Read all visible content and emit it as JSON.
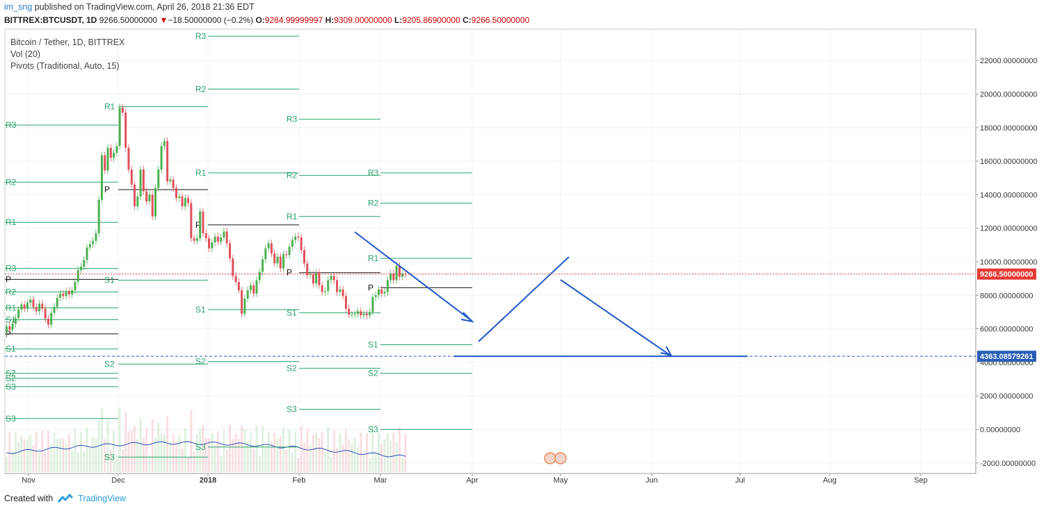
{
  "header": {
    "author": "im_sng",
    "published": "published on TradingView.com, April 26, 2018 21:36 EDT",
    "symbol": "BITTREX:BTCUSDT, 1D",
    "last": "9266.50000000",
    "change": "−18.50000000 (−0.2%)",
    "o_label": "O:",
    "o": "9284.99999997",
    "h_label": "H:",
    "h": "9309.00000000",
    "l_label": "L:",
    "l": "9205.86900000",
    "c_label": "C:",
    "c": "9266.50000000"
  },
  "legend": {
    "line1": "Bitcoin / Tether, 1D, BITTREX",
    "line2": "Vol (20)",
    "line3": "Pivots (Traditional, Auto, 15)"
  },
  "footer": {
    "created_with": "Created with",
    "brand": "TradingView"
  },
  "chart_data": {
    "type": "candlestick",
    "title": "Bitcoin / Tether, 1D, BITTREX",
    "y_axis": {
      "min": -2000,
      "max": 22000,
      "ticks": [
        "22000.00000000",
        "20000.00000000",
        "18000.00000000",
        "16000.00000000",
        "14000.00000000",
        "12000.00000000",
        "10000.00000000",
        "8000.00000000",
        "6000.00000000",
        "4000.00000000",
        "2000.00000000",
        "0.00000000",
        "-2000.00000000"
      ]
    },
    "x_axis": {
      "ticks": [
        "Nov",
        "Dec",
        "2018",
        "Feb",
        "Mar",
        "Apr",
        "May",
        "Jun",
        "Jul",
        "Aug",
        "Sep"
      ]
    },
    "price_tags": [
      {
        "value": 9266.5,
        "label": "9266.50000000",
        "color": "#e53935"
      },
      {
        "value": 4363.08579261,
        "label": "4363.08579261",
        "color": "#2a5fb8"
      }
    ],
    "pivot_sets": [
      {
        "period": "Oct-Nov 2017",
        "P": 5700,
        "R1": 7250,
        "R2": 8200,
        "R3": 9600,
        "S1": 4800,
        "S2": 3350,
        "S3": 2550
      },
      {
        "period": "Nov-Dec 2017",
        "P": 8950,
        "R1": 12350,
        "R2": 14750,
        "R3": 18150,
        "S1": 6550,
        "S2": 3050,
        "S3": 650
      },
      {
        "period": "Dec 2017-Jan 2018",
        "P": 14300,
        "R1": 19250,
        "R2": null,
        "R3": null,
        "S1": 8900,
        "S2": 3900,
        "S3": -1650
      },
      {
        "period": "Jan-Feb 2018",
        "P": 12200,
        "R1": 15300,
        "R2": 20300,
        "R3": 23450,
        "S1": 7150,
        "S2": 4050,
        "S3": -1050
      },
      {
        "period": "Feb-Mar 2018",
        "P": 9350,
        "R1": 12700,
        "R2": 15150,
        "R3": 18500,
        "S1": 6950,
        "S2": 3650,
        "S3": 1200
      },
      {
        "period": "Mar-Apr 2018",
        "P": 8450,
        "R1": 10200,
        "R2": 13500,
        "R3": 15300,
        "S1": 5050,
        "S2": 3350,
        "S3": 0
      }
    ],
    "candles": [
      [
        5800,
        6150
      ],
      [
        6150,
        5950
      ],
      [
        5950,
        6300
      ],
      [
        6300,
        6650
      ],
      [
        6650,
        7150
      ],
      [
        7150,
        7450
      ],
      [
        7450,
        7200
      ],
      [
        7200,
        7550
      ],
      [
        7550,
        7750
      ],
      [
        7750,
        7300
      ],
      [
        7300,
        7050
      ],
      [
        7050,
        7500
      ],
      [
        7500,
        7200
      ],
      [
        7200,
        6600
      ],
      [
        6600,
        6250
      ],
      [
        6250,
        6950
      ],
      [
        6950,
        7300
      ],
      [
        7300,
        7850
      ],
      [
        7850,
        8100
      ],
      [
        8100,
        7950
      ],
      [
        7950,
        8250
      ],
      [
        8250,
        8050
      ],
      [
        8050,
        8300
      ],
      [
        8300,
        8800
      ],
      [
        8800,
        9500
      ],
      [
        9500,
        9700
      ],
      [
        9700,
        10100
      ],
      [
        10100,
        10850
      ],
      [
        10850,
        11050
      ],
      [
        11050,
        11250
      ],
      [
        11250,
        11700
      ],
      [
        11700,
        13700
      ],
      [
        13700,
        16350
      ],
      [
        16350,
        15450
      ],
      [
        15450,
        16800
      ],
      [
        16800,
        16200
      ],
      [
        16200,
        16500
      ],
      [
        16500,
        16900
      ],
      [
        16900,
        19200
      ],
      [
        19200,
        18900
      ],
      [
        18900,
        16800
      ],
      [
        16800,
        15500
      ],
      [
        15500,
        14600
      ],
      [
        14600,
        13300
      ],
      [
        13300,
        13900
      ],
      [
        13900,
        15500
      ],
      [
        15500,
        14200
      ],
      [
        14200,
        13600
      ],
      [
        13600,
        14000
      ],
      [
        14000,
        12700
      ],
      [
        12700,
        14400
      ],
      [
        14400,
        15500
      ],
      [
        15500,
        16900
      ],
      [
        16900,
        17200
      ],
      [
        17200,
        14800
      ],
      [
        14800,
        14900
      ],
      [
        14900,
        14400
      ],
      [
        14400,
        13800
      ],
      [
        13800,
        13900
      ],
      [
        13900,
        13300
      ],
      [
        13300,
        13800
      ],
      [
        13800,
        13500
      ],
      [
        13500,
        11400
      ],
      [
        11400,
        11250
      ],
      [
        11250,
        11400
      ],
      [
        11400,
        13000
      ],
      [
        13000,
        11700
      ],
      [
        11700,
        11400
      ],
      [
        11400,
        10800
      ],
      [
        10800,
        11150
      ],
      [
        11150,
        11500
      ],
      [
        11500,
        11200
      ],
      [
        11200,
        11450
      ],
      [
        11450,
        11800
      ],
      [
        11800,
        11100
      ],
      [
        11100,
        10200
      ],
      [
        10200,
        9150
      ],
      [
        9150,
        8800
      ],
      [
        8800,
        8300
      ],
      [
        8300,
        6900
      ],
      [
        6900,
        7800
      ],
      [
        7800,
        8300
      ],
      [
        8300,
        8600
      ],
      [
        8600,
        8100
      ],
      [
        8100,
        8900
      ],
      [
        8900,
        9400
      ],
      [
        9400,
        10150
      ],
      [
        10150,
        10800
      ],
      [
        10800,
        11100
      ],
      [
        11100,
        10500
      ],
      [
        10500,
        9900
      ],
      [
        9900,
        10300
      ],
      [
        10300,
        9600
      ],
      [
        9600,
        10450
      ],
      [
        10450,
        10400
      ],
      [
        10400,
        10900
      ],
      [
        10900,
        11300
      ],
      [
        11300,
        11500
      ],
      [
        11500,
        11450
      ],
      [
        11450,
        10700
      ],
      [
        10700,
        9900
      ],
      [
        9900,
        9200
      ],
      [
        9200,
        9250
      ],
      [
        9250,
        8700
      ],
      [
        8700,
        9350
      ],
      [
        9350,
        8600
      ],
      [
        8600,
        8200
      ],
      [
        8200,
        8250
      ],
      [
        8250,
        8900
      ],
      [
        8900,
        9150
      ],
      [
        9150,
        8900
      ],
      [
        8900,
        8200
      ],
      [
        8200,
        8350
      ],
      [
        8350,
        7950
      ],
      [
        7950,
        7200
      ],
      [
        7200,
        6850
      ],
      [
        6850,
        6850
      ],
      [
        6850,
        6900
      ],
      [
        6900,
        7050
      ],
      [
        7050,
        6800
      ],
      [
        6800,
        6900
      ],
      [
        6900,
        6800
      ],
      [
        6800,
        7000
      ],
      [
        7000,
        7900
      ],
      [
        7900,
        8000
      ],
      [
        8000,
        8350
      ],
      [
        8350,
        8100
      ],
      [
        8100,
        8200
      ],
      [
        8200,
        8900
      ],
      [
        8900,
        9300
      ],
      [
        9300,
        8900
      ],
      [
        8900,
        9750
      ],
      [
        9750,
        9100
      ],
      [
        9100,
        9300
      ],
      [
        9300,
        9266.5
      ]
    ],
    "volume_avg_note": "Vol (20) moving average line across bottom of chart"
  },
  "annotations": {
    "arrows": [
      "downtrend arrow from mid-Feb high to early-Apr low",
      "rising support line from early-Apr low to late-Apr high",
      "projected arrow down to 4363.08579261 around Jun"
    ]
  }
}
